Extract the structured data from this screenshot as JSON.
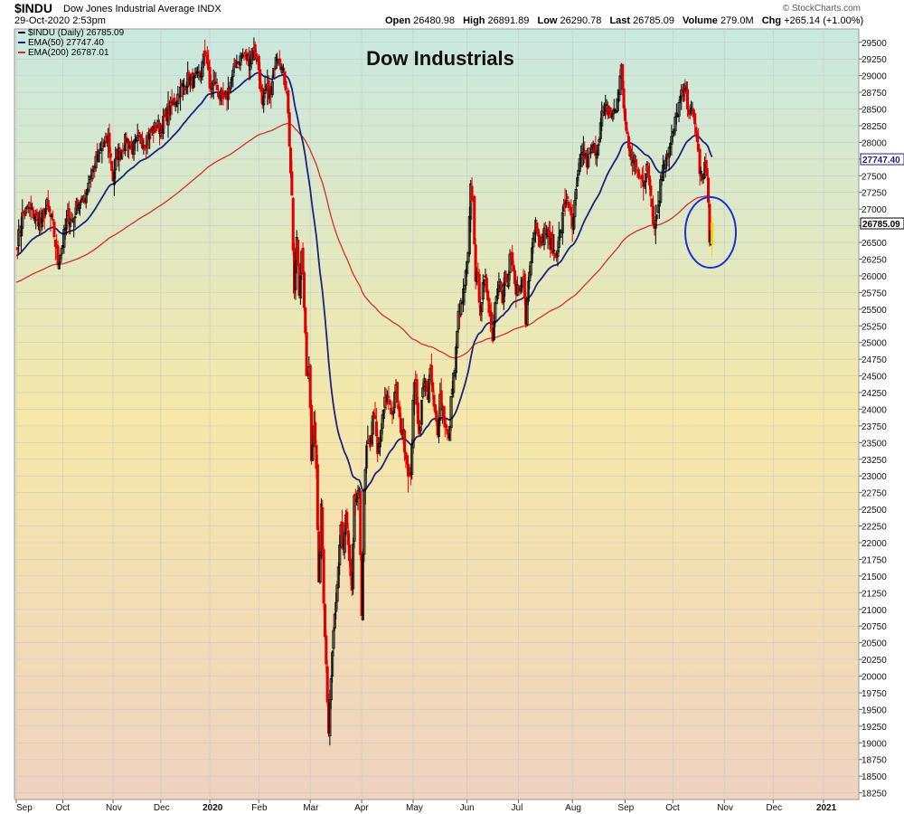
{
  "header": {
    "symbol": "$INDU",
    "name": "Dow Jones Industrial Average INDX",
    "datetime": "29-Oct-2020 2:53pm",
    "copyright": "© StockCharts.com",
    "open_label": "Open",
    "open": "26480.98",
    "high_label": "High",
    "high": "26891.89",
    "low_label": "Low",
    "low": "26290.78",
    "last_label": "Last",
    "last": "26785.09",
    "volume_label": "Volume",
    "volume": "279.0M",
    "chg_label": "Chg",
    "chg": "+265.14 (+1.00%)"
  },
  "legend": {
    "price": "$INDU (Daily) 26785.09",
    "ema50": "EMA(50) 27747.40",
    "ema200": "EMA(200) 26787.01"
  },
  "colors": {
    "up": "#000000",
    "down": "#e00000",
    "last_candle": "#e6d800",
    "ema50": "#1a237e",
    "ema200": "#d32f2f",
    "circle": "#1a2fd8",
    "bg_top": "#c8e8e0",
    "bg_mid": "#f5e8a8",
    "bg_bottom": "#efd2c0"
  },
  "chart_data": {
    "type": "candlestick",
    "title": "Dow Industrials",
    "y_ticks": [
      18250,
      18500,
      18750,
      19000,
      19250,
      19500,
      19750,
      20000,
      20250,
      20500,
      20750,
      21000,
      21250,
      21500,
      21750,
      22000,
      22250,
      22500,
      22750,
      23000,
      23250,
      23500,
      23750,
      24000,
      24250,
      24500,
      24750,
      25000,
      25250,
      25500,
      25750,
      26000,
      26250,
      26500,
      26750,
      27000,
      27250,
      27500,
      27750,
      28000,
      28250,
      28500,
      28750,
      29000,
      29250,
      29500
    ],
    "ylim": [
      18150,
      29700
    ],
    "x_labels": [
      "Sep",
      "Oct",
      "Nov",
      "Dec",
      "2020",
      "Feb",
      "Mar",
      "Apr",
      "May",
      "Jun",
      "Jul",
      "Aug",
      "Sep",
      "Oct",
      "Nov",
      "Dec",
      "2021"
    ],
    "x_label_positions": [
      0,
      38,
      79,
      118,
      158,
      198,
      240,
      282,
      324,
      368,
      410,
      454,
      497,
      536,
      578,
      618,
      659
    ],
    "last_value_label": "26785.09",
    "ema50_value_label": "27747.40",
    "ema50_value": 27747.4,
    "annotation": "circle around last candle",
    "close_anchors": [
      [
        0,
        26400
      ],
      [
        5,
        26900
      ],
      [
        10,
        27000
      ],
      [
        15,
        26900
      ],
      [
        20,
        26800
      ],
      [
        25,
        27050
      ],
      [
        30,
        26750
      ],
      [
        34,
        26200
      ],
      [
        38,
        26500
      ],
      [
        42,
        26900
      ],
      [
        46,
        26800
      ],
      [
        50,
        27100
      ],
      [
        55,
        27100
      ],
      [
        60,
        27500
      ],
      [
        65,
        27700
      ],
      [
        70,
        27900
      ],
      [
        75,
        28050
      ],
      [
        79,
        27460
      ],
      [
        82,
        27800
      ],
      [
        86,
        27900
      ],
      [
        90,
        28050
      ],
      [
        95,
        27900
      ],
      [
        100,
        28050
      ],
      [
        105,
        28000
      ],
      [
        110,
        28150
      ],
      [
        115,
        28250
      ],
      [
        118,
        28200
      ],
      [
        122,
        28400
      ],
      [
        126,
        28500
      ],
      [
        130,
        28650
      ],
      [
        135,
        28800
      ],
      [
        140,
        28950
      ],
      [
        145,
        28900
      ],
      [
        150,
        29000
      ],
      [
        155,
        29400
      ],
      [
        158,
        28800
      ],
      [
        162,
        28900
      ],
      [
        166,
        28700
      ],
      [
        170,
        28600
      ],
      [
        175,
        28900
      ],
      [
        180,
        29200
      ],
      [
        185,
        29300
      ],
      [
        190,
        29250
      ],
      [
        195,
        29400
      ],
      [
        198,
        29100
      ],
      [
        201,
        28500
      ],
      [
        204,
        28800
      ],
      [
        208,
        28700
      ],
      [
        212,
        29350
      ],
      [
        215,
        29300
      ],
      [
        218,
        29000
      ],
      [
        221,
        28800
      ],
      [
        223,
        28000
      ],
      [
        225,
        27100
      ],
      [
        227,
        25700
      ],
      [
        229,
        26600
      ],
      [
        231,
        25800
      ],
      [
        233,
        26300
      ],
      [
        235,
        25600
      ],
      [
        237,
        24500
      ],
      [
        239,
        24700
      ],
      [
        241,
        23300
      ],
      [
        243,
        23800
      ],
      [
        245,
        23100
      ],
      [
        247,
        21300
      ],
      [
        249,
        22600
      ],
      [
        251,
        21200
      ],
      [
        253,
        20200
      ],
      [
        255,
        19200
      ],
      [
        257,
        19900
      ],
      [
        259,
        20700
      ],
      [
        261,
        21000
      ],
      [
        263,
        21600
      ],
      [
        265,
        22300
      ],
      [
        267,
        21900
      ],
      [
        269,
        22400
      ],
      [
        272,
        21700
      ],
      [
        274,
        21200
      ],
      [
        276,
        22600
      ],
      [
        280,
        22700
      ],
      [
        282,
        21000
      ],
      [
        284,
        22700
      ],
      [
        286,
        23400
      ],
      [
        289,
        23500
      ],
      [
        292,
        24000
      ],
      [
        295,
        23300
      ],
      [
        298,
        23700
      ],
      [
        301,
        24100
      ],
      [
        304,
        24200
      ],
      [
        307,
        23900
      ],
      [
        310,
        24300
      ],
      [
        313,
        23800
      ],
      [
        316,
        23600
      ],
      [
        319,
        23200
      ],
      [
        322,
        22900
      ],
      [
        324,
        24200
      ],
      [
        326,
        24400
      ],
      [
        329,
        23600
      ],
      [
        332,
        24300
      ],
      [
        334,
        24500
      ],
      [
        336,
        24100
      ],
      [
        338,
        24600
      ],
      [
        341,
        24000
      ],
      [
        344,
        23700
      ],
      [
        346,
        24200
      ],
      [
        350,
        23800
      ],
      [
        353,
        23500
      ],
      [
        356,
        24400
      ],
      [
        358,
        24600
      ],
      [
        361,
        25400
      ],
      [
        364,
        25600
      ],
      [
        367,
        26000
      ],
      [
        369,
        26300
      ],
      [
        371,
        27300
      ],
      [
        373,
        27100
      ],
      [
        375,
        26000
      ],
      [
        377,
        25900
      ],
      [
        379,
        25500
      ],
      [
        381,
        25800
      ],
      [
        383,
        25900
      ],
      [
        385,
        25700
      ],
      [
        387,
        25400
      ],
      [
        389,
        25100
      ],
      [
        391,
        25600
      ],
      [
        393,
        25900
      ],
      [
        395,
        26000
      ],
      [
        397,
        25600
      ],
      [
        399,
        26000
      ],
      [
        401,
        25800
      ],
      [
        403,
        26300
      ],
      [
        405,
        26100
      ],
      [
        408,
        25700
      ],
      [
        410,
        25900
      ],
      [
        412,
        25800
      ],
      [
        414,
        26000
      ],
      [
        416,
        25300
      ],
      [
        418,
        26000
      ],
      [
        420,
        26300
      ],
      [
        422,
        26600
      ],
      [
        424,
        26800
      ],
      [
        426,
        26700
      ],
      [
        428,
        26400
      ],
      [
        430,
        26600
      ],
      [
        432,
        26700
      ],
      [
        434,
        26600
      ],
      [
        436,
        26500
      ],
      [
        440,
        26300
      ],
      [
        444,
        26600
      ],
      [
        447,
        27000
      ],
      [
        450,
        27200
      ],
      [
        454,
        26700
      ],
      [
        458,
        27400
      ],
      [
        462,
        27900
      ],
      [
        466,
        27700
      ],
      [
        470,
        27900
      ],
      [
        474,
        27900
      ],
      [
        478,
        28400
      ],
      [
        482,
        28500
      ],
      [
        486,
        28400
      ],
      [
        490,
        28500
      ],
      [
        494,
        29100
      ],
      [
        497,
        28300
      ],
      [
        500,
        27900
      ],
      [
        503,
        27700
      ],
      [
        506,
        27700
      ],
      [
        509,
        27500
      ],
      [
        512,
        27300
      ],
      [
        515,
        27700
      ],
      [
        518,
        27300
      ],
      [
        520,
        26800
      ],
      [
        522,
        26800
      ],
      [
        525,
        27200
      ],
      [
        528,
        27700
      ],
      [
        530,
        27800
      ],
      [
        533,
        27900
      ],
      [
        536,
        28100
      ],
      [
        540,
        28500
      ],
      [
        543,
        28700
      ],
      [
        546,
        28800
      ],
      [
        549,
        28500
      ],
      [
        552,
        28400
      ],
      [
        555,
        28200
      ],
      [
        558,
        27600
      ],
      [
        560,
        27400
      ],
      [
        562,
        27600
      ],
      [
        564,
        27600
      ],
      [
        566,
        26500
      ],
      [
        568,
        26785
      ]
    ]
  }
}
